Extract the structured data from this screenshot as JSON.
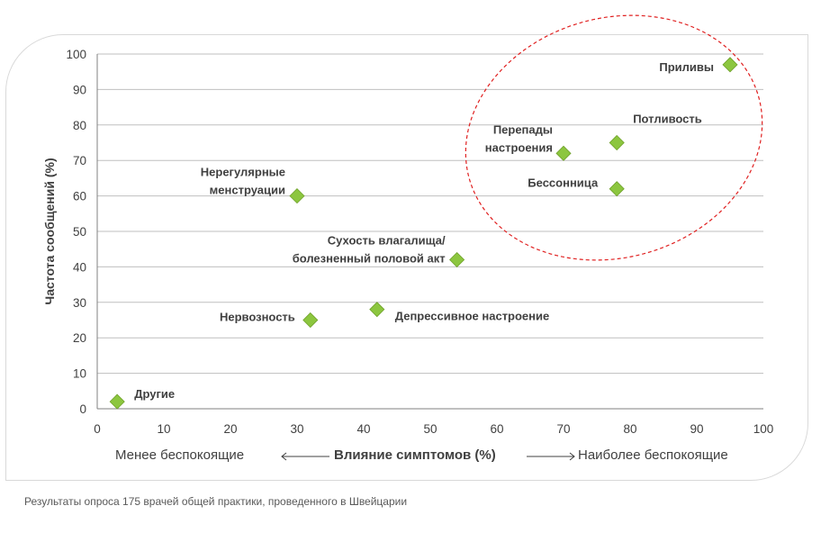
{
  "chart_data": {
    "type": "scatter",
    "title": "",
    "ylabel": "Частота сообщений (%)",
    "xlabel": "Влияние симптомов (%)",
    "xlabel_left": "Менее беспокоящие",
    "xlabel_right": "Наиболее беспокоящие",
    "xlim": [
      0,
      100
    ],
    "ylim": [
      0,
      100
    ],
    "xticks": [
      "0",
      "10",
      "20",
      "30",
      "40",
      "50",
      "60",
      "70",
      "80",
      "90",
      "100"
    ],
    "yticks": [
      "0",
      "10",
      "20",
      "30",
      "40",
      "50",
      "60",
      "70",
      "80",
      "90",
      "100"
    ],
    "grid": true,
    "marker_color": "#8cc63f",
    "highlight_color": "#e02020",
    "points": [
      {
        "x": 95,
        "y": 97,
        "label": [
          "Приливы"
        ]
      },
      {
        "x": 78,
        "y": 75,
        "label": [
          "Потливость"
        ]
      },
      {
        "x": 70,
        "y": 72,
        "label": [
          "Перепады",
          "настроения"
        ]
      },
      {
        "x": 78,
        "y": 62,
        "label": [
          "Бессонница"
        ]
      },
      {
        "x": 30,
        "y": 60,
        "label": [
          "Нерегулярные",
          "менструации"
        ]
      },
      {
        "x": 54,
        "y": 42,
        "label": [
          "Сухость влагалища/",
          "болезненный половой акт"
        ]
      },
      {
        "x": 42,
        "y": 28,
        "label": [
          "Депрессивное настроение"
        ]
      },
      {
        "x": 32,
        "y": 25,
        "label": [
          "Нервозность"
        ]
      },
      {
        "x": 3,
        "y": 2,
        "label": [
          "Другие"
        ]
      }
    ]
  },
  "footnote": "Результаты опроса 175 врачей общей практики, проведенного в Швейцарии"
}
